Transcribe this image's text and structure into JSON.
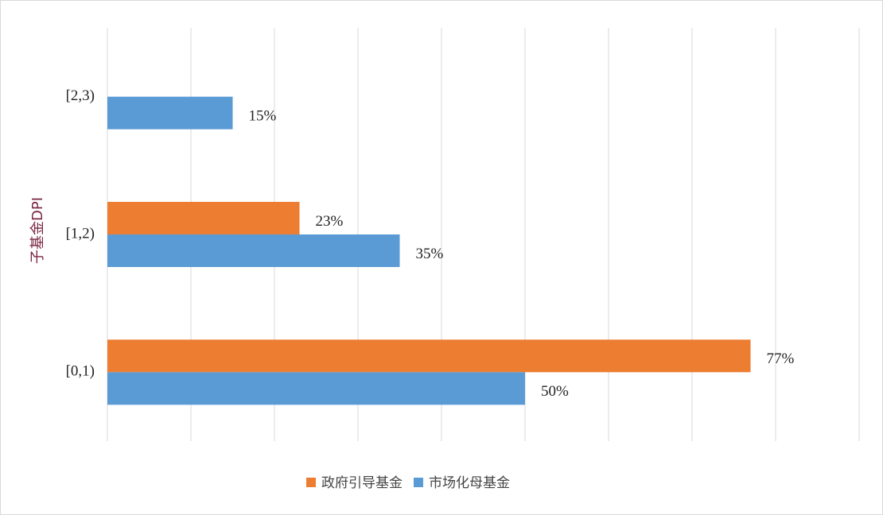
{
  "chart_data": {
    "type": "hbar",
    "y_label": "子基金DPI",
    "categories": [
      "[0,1)",
      "[1,2)",
      "[2,3)"
    ],
    "series": [
      {
        "name": "政府引导基金",
        "color": "#ed7d31",
        "values": [
          77,
          23,
          null
        ],
        "value_labels": [
          "77%",
          "23%",
          null
        ]
      },
      {
        "name": "市场化母基金",
        "color": "#5b9bd5",
        "values": [
          50,
          35,
          15
        ],
        "value_labels": [
          "50%",
          "35%",
          "15%"
        ]
      }
    ],
    "xlim": [
      0,
      90
    ],
    "xticks": [
      0,
      10,
      20,
      30,
      40,
      50,
      60,
      70,
      80,
      90
    ],
    "grid": true,
    "legend": "bottom"
  }
}
